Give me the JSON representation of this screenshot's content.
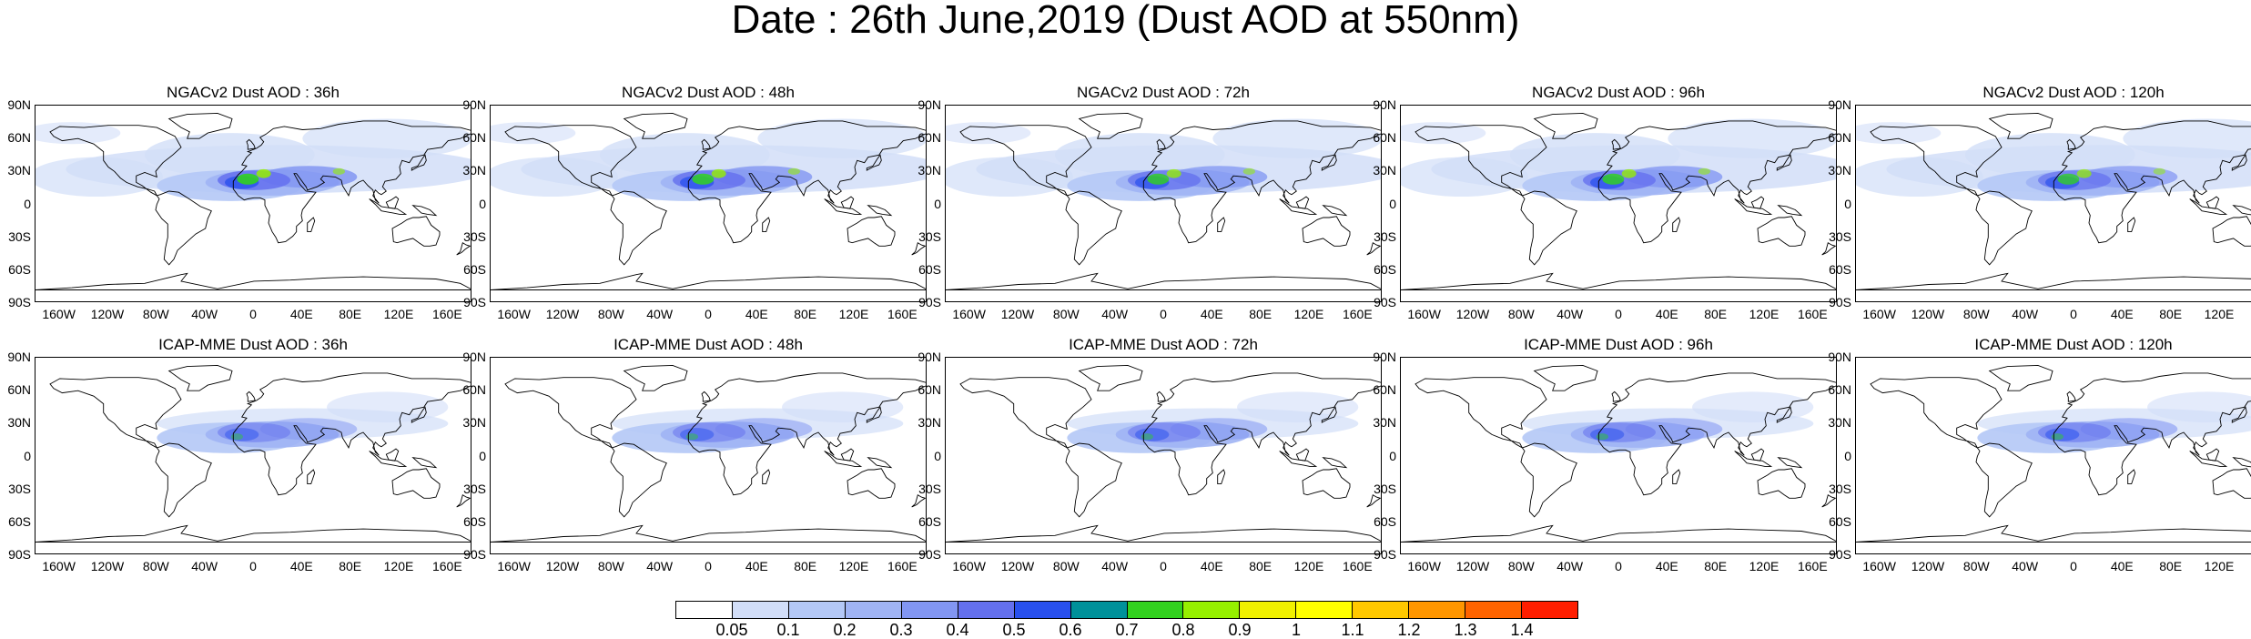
{
  "title": "Date : 26th June,2019 (Dust AOD at 550nm)",
  "lat_ticks": [
    "90N",
    "60N",
    "30N",
    "0",
    "30S",
    "60S",
    "90S"
  ],
  "lon_ticks": [
    "160W",
    "120W",
    "80W",
    "40W",
    "0",
    "40E",
    "80E",
    "120E",
    "160E"
  ],
  "panels": [
    {
      "model": "NGACv2",
      "title": "NGACv2 Dust AOD : 36h",
      "lead_hours": 36,
      "intensity": 1.0
    },
    {
      "model": "NGACv2",
      "title": "NGACv2 Dust AOD : 48h",
      "lead_hours": 48,
      "intensity": 0.95
    },
    {
      "model": "NGACv2",
      "title": "NGACv2 Dust AOD : 72h",
      "lead_hours": 72,
      "intensity": 0.9
    },
    {
      "model": "NGACv2",
      "title": "NGACv2 Dust AOD : 96h",
      "lead_hours": 96,
      "intensity": 0.92
    },
    {
      "model": "NGACv2",
      "title": "NGACv2 Dust AOD : 120h",
      "lead_hours": 120,
      "intensity": 0.85
    },
    {
      "model": "ICAP-MME",
      "title": "ICAP-MME Dust AOD : 36h",
      "lead_hours": 36,
      "intensity": 0.6
    },
    {
      "model": "ICAP-MME",
      "title": "ICAP-MME Dust AOD : 48h",
      "lead_hours": 48,
      "intensity": 0.62
    },
    {
      "model": "ICAP-MME",
      "title": "ICAP-MME Dust AOD : 72h",
      "lead_hours": 72,
      "intensity": 0.64
    },
    {
      "model": "ICAP-MME",
      "title": "ICAP-MME Dust AOD : 96h",
      "lead_hours": 96,
      "intensity": 0.66
    },
    {
      "model": "ICAP-MME",
      "title": "ICAP-MME Dust AOD : 120h",
      "lead_hours": 120,
      "intensity": 0.68
    }
  ],
  "colorbar": {
    "labels": [
      "0.05",
      "0.1",
      "0.2",
      "0.3",
      "0.4",
      "0.5",
      "0.6",
      "0.7",
      "0.8",
      "0.9",
      "1",
      "1.1",
      "1.2",
      "1.3",
      "1.4"
    ],
    "colors": [
      "#ffffff",
      "#d2def8",
      "#b4c8f6",
      "#a0b4f4",
      "#8296f2",
      "#6470ee",
      "#2850ee",
      "#00919a",
      "#32d21e",
      "#96f000",
      "#f0f000",
      "#ffff00",
      "#ffc800",
      "#ff9600",
      "#ff6400",
      "#ff1e00"
    ]
  }
}
